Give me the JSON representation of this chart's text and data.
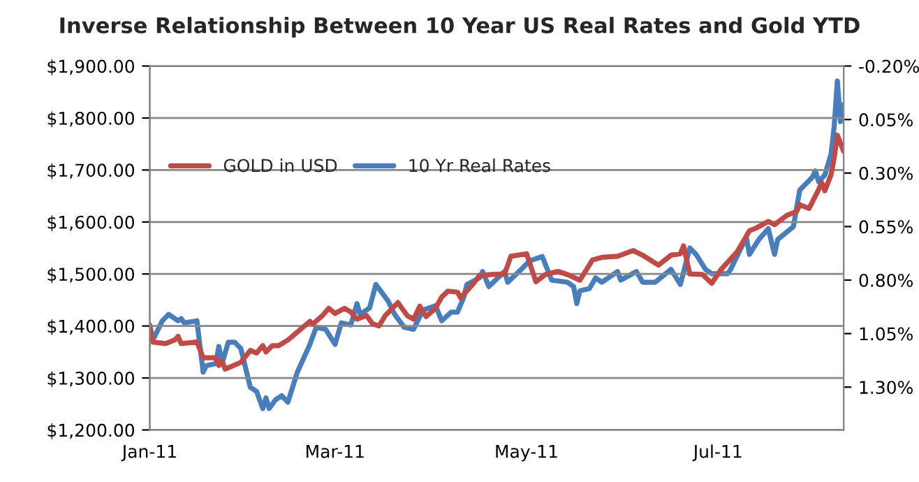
{
  "chart_data": {
    "type": "line",
    "title": "Inverse Relationship Between 10 Year US Real Rates and Gold YTD",
    "xlim": [
      "2011-01-01",
      "2011-08-10"
    ],
    "xticks": [
      {
        "value": "2011-01-01",
        "label": "Jan-11"
      },
      {
        "value": "2011-03-01",
        "label": "Mar-11"
      },
      {
        "value": "2011-05-01",
        "label": "May-11"
      },
      {
        "value": "2011-07-01",
        "label": "Jul-11"
      }
    ],
    "ylim": [
      1200,
      1900
    ],
    "yticks": [
      {
        "value": 1200,
        "label": "$1,200.00"
      },
      {
        "value": 1300,
        "label": "$1,300.00"
      },
      {
        "value": 1400,
        "label": "$1,400.00"
      },
      {
        "value": 1500,
        "label": "$1,500.00"
      },
      {
        "value": 1600,
        "label": "$1,600.00"
      },
      {
        "value": 1700,
        "label": "$1,700.00"
      },
      {
        "value": 1800,
        "label": "$1,800.00"
      },
      {
        "value": 1900,
        "label": "$1,900.00"
      }
    ],
    "y2lim": [
      1.5,
      -0.2
    ],
    "y2ticks": [
      {
        "value": -0.2,
        "label": "-0.20%"
      },
      {
        "value": 0.05,
        "label": "0.05%"
      },
      {
        "value": 0.3,
        "label": "0.30%"
      },
      {
        "value": 0.55,
        "label": "0.55%"
      },
      {
        "value": 0.8,
        "label": "0.80%"
      },
      {
        "value": 1.05,
        "label": "1.05%"
      },
      {
        "value": 1.3,
        "label": "1.30%"
      }
    ],
    "grid": "y",
    "legend": "top left",
    "marker": "none",
    "line_style": "solid",
    "series": [
      {
        "name": "GOLD in USD",
        "color": "#be4b48",
        "x": [
          "2011-01-01",
          "2011-01-02",
          "2011-01-06",
          "2011-01-09",
          "2011-01-10",
          "2011-01-11",
          "2011-01-16",
          "2011-01-18",
          "2011-01-22",
          "2011-01-23",
          "2011-01-24",
          "2011-01-25",
          "2011-01-30",
          "2011-02-02",
          "2011-02-04",
          "2011-02-06",
          "2011-02-07",
          "2011-02-09",
          "2011-02-11",
          "2011-02-14",
          "2011-02-21",
          "2011-02-22",
          "2011-02-25",
          "2011-02-27",
          "2011-03-01",
          "2011-03-04",
          "2011-03-06",
          "2011-03-08",
          "2011-03-11",
          "2011-03-13",
          "2011-03-15",
          "2011-03-17",
          "2011-03-21",
          "2011-03-24",
          "2011-03-26",
          "2011-03-28",
          "2011-03-30",
          "2011-04-02",
          "2011-04-04",
          "2011-04-06",
          "2011-04-09",
          "2011-04-10",
          "2011-04-14",
          "2011-04-16",
          "2011-04-20",
          "2011-04-24",
          "2011-04-26",
          "2011-05-01",
          "2011-05-04",
          "2011-05-07",
          "2011-05-11",
          "2011-05-14",
          "2011-05-18",
          "2011-05-22",
          "2011-05-25",
          "2011-05-30",
          "2011-06-04",
          "2011-06-07",
          "2011-06-12",
          "2011-06-16",
          "2011-06-19",
          "2011-06-20",
          "2011-06-22",
          "2011-06-26",
          "2011-06-29",
          "2011-07-02",
          "2011-07-07",
          "2011-07-11",
          "2011-07-13",
          "2011-07-17",
          "2011-07-19",
          "2011-07-23",
          "2011-07-26",
          "2011-07-27",
          "2011-07-30",
          "2011-08-02",
          "2011-08-03",
          "2011-08-04",
          "2011-08-06",
          "2011-08-07",
          "2011-08-08",
          "2011-08-10"
        ],
        "values": [
          1395,
          1369,
          1366,
          1373,
          1380,
          1366,
          1369,
          1339,
          1339,
          1324,
          1333,
          1317,
          1330,
          1353,
          1348,
          1362,
          1350,
          1362,
          1362,
          1373,
          1409,
          1404,
          1420,
          1434,
          1424,
          1434,
          1427,
          1413,
          1420,
          1404,
          1400,
          1420,
          1445,
          1420,
          1413,
          1438,
          1418,
          1434,
          1456,
          1467,
          1465,
          1454,
          1481,
          1497,
          1499,
          1500,
          1534,
          1539,
          1485,
          1499,
          1505,
          1499,
          1488,
          1527,
          1532,
          1534,
          1545,
          1536,
          1517,
          1536,
          1539,
          1554,
          1500,
          1499,
          1482,
          1509,
          1542,
          1583,
          1588,
          1601,
          1595,
          1613,
          1620,
          1633,
          1626,
          1662,
          1676,
          1660,
          1691,
          1724,
          1767,
          1736
        ]
      },
      {
        "name": "10 Yr Real Rates",
        "color": "#4a7ebb",
        "axis": "y2",
        "x": [
          "2011-01-01",
          "2011-01-02",
          "2011-01-05",
          "2011-01-07",
          "2011-01-10",
          "2011-01-11",
          "2011-01-12",
          "2011-01-16",
          "2011-01-18",
          "2011-01-19",
          "2011-01-22",
          "2011-01-23",
          "2011-01-24",
          "2011-01-26",
          "2011-01-28",
          "2011-01-30",
          "2011-02-02",
          "2011-02-04",
          "2011-02-06",
          "2011-02-07",
          "2011-02-08",
          "2011-02-10",
          "2011-02-12",
          "2011-02-14",
          "2011-02-17",
          "2011-02-21",
          "2011-02-23",
          "2011-02-26",
          "2011-03-01",
          "2011-03-03",
          "2011-03-06",
          "2011-03-08",
          "2011-03-09",
          "2011-03-12",
          "2011-03-14",
          "2011-03-18",
          "2011-03-20",
          "2011-03-23",
          "2011-03-26",
          "2011-03-29",
          "2011-04-02",
          "2011-04-04",
          "2011-04-07",
          "2011-04-09",
          "2011-04-11",
          "2011-04-12",
          "2011-04-16",
          "2011-04-17",
          "2011-04-19",
          "2011-04-24",
          "2011-04-25",
          "2011-04-30",
          "2011-05-02",
          "2011-05-06",
          "2011-05-09",
          "2011-05-14",
          "2011-05-16",
          "2011-05-17",
          "2011-05-18",
          "2011-05-21",
          "2011-05-23",
          "2011-05-25",
          "2011-05-30",
          "2011-05-31",
          "2011-06-05",
          "2011-06-07",
          "2011-06-11",
          "2011-06-16",
          "2011-06-19",
          "2011-06-22",
          "2011-06-24",
          "2011-06-27",
          "2011-06-29",
          "2011-07-04",
          "2011-07-05",
          "2011-07-10",
          "2011-07-11",
          "2011-07-14",
          "2011-07-17",
          "2011-07-19",
          "2011-07-20",
          "2011-07-25",
          "2011-07-27",
          "2011-07-31",
          "2011-08-01",
          "2011-08-02",
          "2011-08-04",
          "2011-08-06",
          "2011-08-07",
          "2011-08-08",
          "2011-08-09",
          "2011-08-10"
        ],
        "values": [
          1.01,
          1.08,
          0.99,
          0.96,
          0.99,
          0.98,
          1.0,
          0.99,
          1.23,
          1.2,
          1.19,
          1.11,
          1.19,
          1.09,
          1.09,
          1.12,
          1.3,
          1.32,
          1.4,
          1.35,
          1.4,
          1.36,
          1.34,
          1.37,
          1.23,
          1.1,
          1.02,
          1.03,
          1.1,
          1.0,
          1.01,
          0.91,
          0.96,
          0.93,
          0.82,
          0.9,
          0.96,
          1.02,
          1.03,
          0.94,
          0.92,
          0.99,
          0.95,
          0.95,
          0.88,
          0.82,
          0.79,
          0.76,
          0.83,
          0.76,
          0.81,
          0.74,
          0.71,
          0.69,
          0.8,
          0.81,
          0.83,
          0.91,
          0.85,
          0.84,
          0.79,
          0.81,
          0.76,
          0.8,
          0.76,
          0.81,
          0.81,
          0.75,
          0.82,
          0.65,
          0.68,
          0.75,
          0.77,
          0.77,
          0.75,
          0.6,
          0.68,
          0.61,
          0.56,
          0.68,
          0.61,
          0.55,
          0.38,
          0.32,
          0.29,
          0.34,
          0.31,
          0.21,
          0.08,
          -0.13,
          0.06,
          -0.02
        ]
      }
    ]
  }
}
